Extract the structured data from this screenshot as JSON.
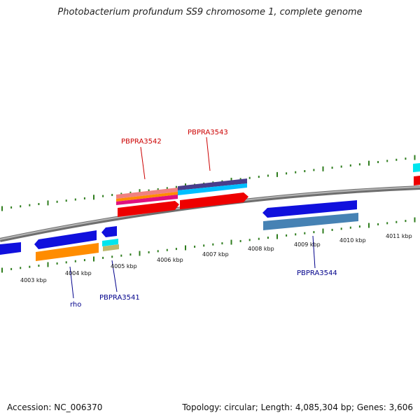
{
  "title": "Photobacterium profundum SS9 chromosome 1, complete genome",
  "footer": {
    "accession": "Accession: NC_006370",
    "summary": "Topology: circular; Length: 4,085,304 bp; Genes: 3,606"
  },
  "colors": {
    "backbone": "#8a8a8a",
    "tick": "#2f7d1e",
    "label_forward": "#cc0000",
    "label_reverse": "#00008b"
  },
  "scale_labels": [
    "4003 kbp",
    "4004 kbp",
    "4005 kbp",
    "4006 kbp",
    "4007 kbp",
    "4008 kbp",
    "4009 kbp",
    "4010 kbp",
    "4011 kbp"
  ],
  "gene_labels": [
    {
      "id": "pbpra3542",
      "text": "PBPRA3542",
      "strand": "forward"
    },
    {
      "id": "pbpra3543",
      "text": "PBPRA3543",
      "strand": "forward"
    },
    {
      "id": "rho",
      "text": "rho",
      "strand": "reverse"
    },
    {
      "id": "pbpra3541",
      "text": "PBPRA3541",
      "strand": "reverse"
    },
    {
      "id": "pbpra3544",
      "text": "PBPRA3544",
      "strand": "reverse"
    }
  ]
}
